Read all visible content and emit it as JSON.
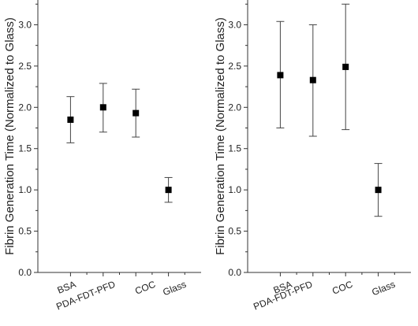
{
  "chart_data": [
    {
      "type": "scatter",
      "ylabel": "Fibrin Generation Time (Normalized to Glass)",
      "ylim": [
        0,
        3.3
      ],
      "yticks": [
        "0.0",
        "0.5",
        "1.0",
        "1.5",
        "2.0",
        "2.5",
        "3.0"
      ],
      "categories": [
        "BSA",
        "PDA-FDT-PFD",
        "COC",
        "Glass"
      ],
      "series": [
        {
          "values": [
            1.85,
            2.0,
            1.93,
            1.0
          ],
          "error_low": [
            1.57,
            1.7,
            1.64,
            0.85
          ],
          "error_high": [
            2.13,
            2.29,
            2.22,
            1.15
          ]
        }
      ],
      "grid": false
    },
    {
      "type": "scatter",
      "ylabel": "Fibrin Generation Time (Normalized to Glass)",
      "ylim": [
        0,
        3.3
      ],
      "yticks": [
        "0.0",
        "0.5",
        "1.0",
        "1.5",
        "2.0",
        "2.5",
        "3.0"
      ],
      "categories": [
        "BSA",
        "PDA-FDT-PFD",
        "COC",
        "Glass"
      ],
      "series": [
        {
          "values": [
            2.39,
            2.33,
            2.49,
            1.0
          ],
          "error_low": [
            1.75,
            1.65,
            1.73,
            0.68
          ],
          "error_high": [
            3.04,
            3.0,
            3.25,
            1.32
          ]
        }
      ],
      "grid": false
    }
  ]
}
